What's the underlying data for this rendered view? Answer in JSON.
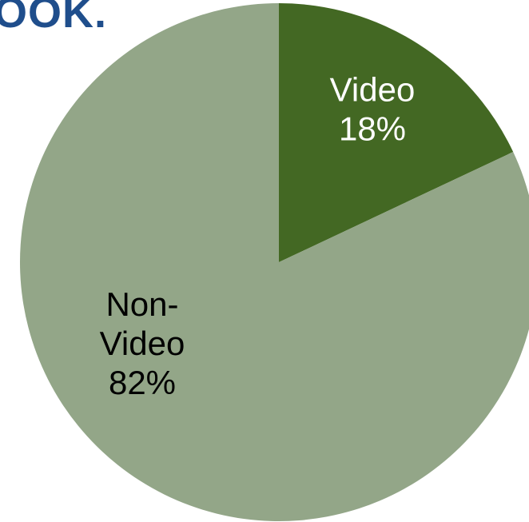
{
  "logo": {
    "text": "OOK.",
    "color": "#1f4e8c"
  },
  "chart_data": {
    "type": "pie",
    "title": "",
    "slices": [
      {
        "label_lines": [
          "Video",
          "18%"
        ],
        "value": 18,
        "color": "#436823",
        "label_color": "#ffffff"
      },
      {
        "label_lines": [
          "Non-",
          "Video",
          "82%"
        ],
        "value": 82,
        "color": "#93a688",
        "label_color": "#000000"
      }
    ],
    "start_angle": "12 o'clock",
    "direction": "clockwise",
    "legend": "none"
  }
}
